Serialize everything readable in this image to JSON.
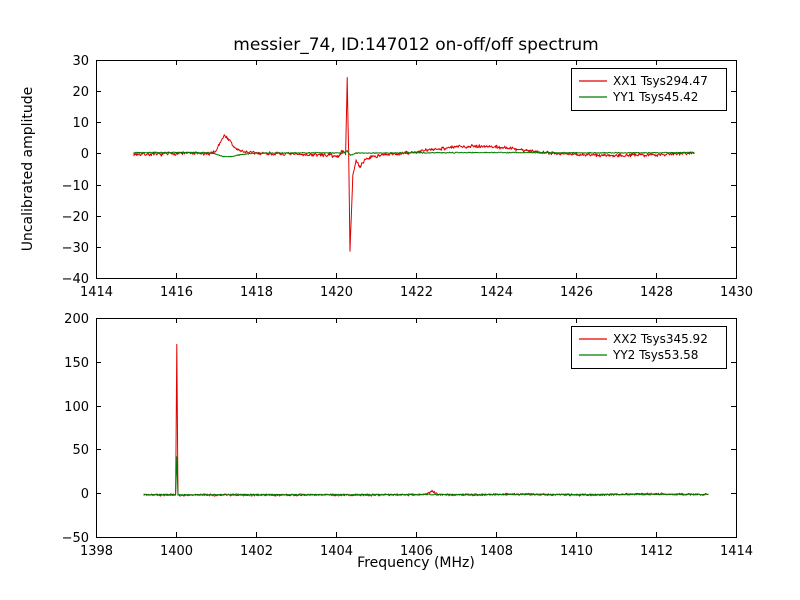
{
  "chart_data": [
    {
      "type": "line",
      "title": "messier_74, ID:147012 on-off/off spectrum",
      "xlabel": "",
      "ylabel": "Uncalibrated amplitude",
      "xlim": [
        1414,
        1430
      ],
      "ylim": [
        -40,
        30
      ],
      "xticks": [
        1414,
        1416,
        1418,
        1420,
        1422,
        1424,
        1426,
        1428,
        1430
      ],
      "yticks": [
        -40,
        -30,
        -20,
        -10,
        0,
        10,
        20,
        30
      ],
      "grid": false,
      "legend_position": "upper right",
      "series": [
        {
          "name": "XX1 Tsys294.47",
          "color": "#e00000",
          "noise": 0.7,
          "seed": 7,
          "anchors": [
            [
              1414.95,
              -0.2
            ],
            [
              1415.5,
              -0.3
            ],
            [
              1416.2,
              0.1
            ],
            [
              1416.8,
              -0.2
            ],
            [
              1417.0,
              0.8
            ],
            [
              1417.1,
              3.5
            ],
            [
              1417.2,
              5.8
            ],
            [
              1417.3,
              4.8
            ],
            [
              1417.45,
              2.0
            ],
            [
              1417.6,
              0.8
            ],
            [
              1417.9,
              0.2
            ],
            [
              1418.6,
              -0.2
            ],
            [
              1419.4,
              -0.4
            ],
            [
              1419.9,
              -0.6
            ],
            [
              1420.05,
              -1.2
            ],
            [
              1420.15,
              0.8
            ],
            [
              1420.24,
              0.0
            ],
            [
              1420.28,
              24.0
            ],
            [
              1420.315,
              1.0
            ],
            [
              1420.35,
              -31.0
            ],
            [
              1420.42,
              -7.0
            ],
            [
              1420.5,
              -2.5
            ],
            [
              1420.6,
              -4.5
            ],
            [
              1420.72,
              -2.0
            ],
            [
              1420.9,
              -1.0
            ],
            [
              1421.3,
              -0.4
            ],
            [
              1421.9,
              0.3
            ],
            [
              1422.5,
              1.4
            ],
            [
              1423.0,
              2.1
            ],
            [
              1423.5,
              2.4
            ],
            [
              1424.0,
              2.1
            ],
            [
              1424.5,
              1.4
            ],
            [
              1425.0,
              0.6
            ],
            [
              1425.6,
              -0.1
            ],
            [
              1426.3,
              -0.5
            ],
            [
              1427.2,
              -0.6
            ],
            [
              1428.0,
              -0.4
            ],
            [
              1428.6,
              0.0
            ],
            [
              1428.95,
              0.3
            ]
          ]
        },
        {
          "name": "YY1 Tsys45.42",
          "color": "#007a00",
          "noise": 0.18,
          "seed": 13,
          "anchors": [
            [
              1414.95,
              0.3
            ],
            [
              1416.6,
              0.3
            ],
            [
              1416.95,
              0.0
            ],
            [
              1417.15,
              -0.9
            ],
            [
              1417.35,
              -1.1
            ],
            [
              1417.6,
              -0.4
            ],
            [
              1418.0,
              0.1
            ],
            [
              1419.5,
              0.2
            ],
            [
              1420.2,
              0.1
            ],
            [
              1420.28,
              0.9
            ],
            [
              1420.36,
              -0.6
            ],
            [
              1420.5,
              0.1
            ],
            [
              1422.0,
              0.2
            ],
            [
              1424.0,
              0.3
            ],
            [
              1426.0,
              0.2
            ],
            [
              1428.0,
              0.2
            ],
            [
              1428.95,
              0.3
            ]
          ]
        }
      ]
    },
    {
      "type": "line",
      "title": "",
      "xlabel": "Frequency (MHz)",
      "ylabel": "",
      "xlim": [
        1398,
        1414
      ],
      "ylim": [
        -50,
        200
      ],
      "xticks": [
        1398,
        1400,
        1402,
        1404,
        1406,
        1408,
        1410,
        1412,
        1414
      ],
      "yticks": [
        -50,
        0,
        50,
        100,
        150,
        200
      ],
      "grid": false,
      "legend_position": "upper right",
      "series": [
        {
          "name": "XX2 Tsys345.92",
          "color": "#e00000",
          "noise": 1.4,
          "seed": 21,
          "anchors": [
            [
              1399.2,
              -1.8
            ],
            [
              1399.6,
              -2.0
            ],
            [
              1399.99,
              -2.0
            ],
            [
              1400.02,
              170.0
            ],
            [
              1400.05,
              -2.5
            ],
            [
              1400.5,
              -2.2
            ],
            [
              1401.5,
              -2.0
            ],
            [
              1402.5,
              -2.2
            ],
            [
              1403.5,
              -2.0
            ],
            [
              1404.5,
              -2.2
            ],
            [
              1405.5,
              -2.0
            ],
            [
              1406.25,
              -1.5
            ],
            [
              1406.4,
              2.5
            ],
            [
              1406.55,
              -1.8
            ],
            [
              1407.5,
              -2.0
            ],
            [
              1408.3,
              -1.2
            ],
            [
              1408.8,
              -1.0
            ],
            [
              1409.5,
              -1.8
            ],
            [
              1410.5,
              -2.0
            ],
            [
              1411.3,
              -1.0
            ],
            [
              1412.0,
              -0.8
            ],
            [
              1412.8,
              -1.2
            ],
            [
              1413.3,
              -1.5
            ]
          ]
        },
        {
          "name": "YY2 Tsys53.58",
          "color": "#007a00",
          "noise": 0.9,
          "seed": 42,
          "anchors": [
            [
              1399.2,
              -1.5
            ],
            [
              1399.99,
              -1.5
            ],
            [
              1400.02,
              42.0
            ],
            [
              1400.05,
              -1.8
            ],
            [
              1401.0,
              -1.5
            ],
            [
              1403.0,
              -1.6
            ],
            [
              1405.0,
              -1.5
            ],
            [
              1407.0,
              -1.5
            ],
            [
              1409.0,
              -1.5
            ],
            [
              1411.0,
              -1.4
            ],
            [
              1413.3,
              -1.4
            ]
          ]
        }
      ]
    }
  ]
}
